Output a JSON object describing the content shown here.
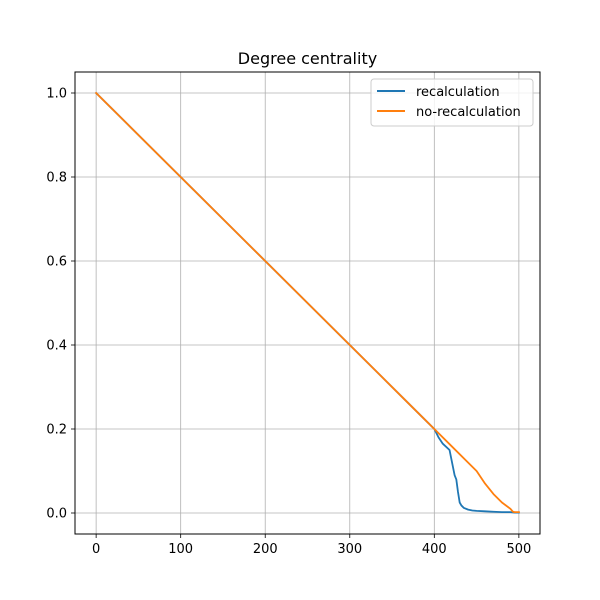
{
  "chart_data": {
    "type": "line",
    "title": "Degree centrality",
    "xlabel": "",
    "ylabel": "",
    "xlim": [
      -25,
      525
    ],
    "ylim": [
      -0.05,
      1.05
    ],
    "xticks": [
      0,
      100,
      200,
      300,
      400,
      500
    ],
    "xtick_labels": [
      "0",
      "100",
      "200",
      "300",
      "400",
      "500"
    ],
    "yticks": [
      0.0,
      0.2,
      0.4,
      0.6,
      0.8,
      1.0
    ],
    "ytick_labels": [
      "0.0",
      "0.2",
      "0.4",
      "0.6",
      "0.8",
      "1.0"
    ],
    "grid": true,
    "legend_position": "upper right",
    "series": [
      {
        "name": "recalculation",
        "color": "#1f77b4",
        "x": [
          0,
          100,
          200,
          300,
          370,
          400,
          405,
          410,
          418,
          420,
          422,
          424,
          426,
          428,
          430,
          432,
          435,
          440,
          445,
          450,
          460,
          470,
          480,
          490,
          495,
          500
        ],
        "y": [
          1.0,
          0.8,
          0.6,
          0.4,
          0.26,
          0.2,
          0.18,
          0.165,
          0.15,
          0.13,
          0.11,
          0.09,
          0.08,
          0.05,
          0.025,
          0.018,
          0.012,
          0.008,
          0.006,
          0.005,
          0.004,
          0.003,
          0.002,
          0.002,
          0.001,
          0.001
        ]
      },
      {
        "name": "no-recalculation",
        "color": "#ff7f0e",
        "x": [
          0,
          100,
          200,
          300,
          370,
          400,
          420,
          440,
          450,
          460,
          470,
          480,
          490,
          493,
          495,
          500
        ],
        "y": [
          1.0,
          0.8,
          0.6,
          0.4,
          0.26,
          0.2,
          0.16,
          0.12,
          0.1,
          0.07,
          0.045,
          0.025,
          0.01,
          0.003,
          0.002,
          0.002
        ]
      }
    ]
  }
}
